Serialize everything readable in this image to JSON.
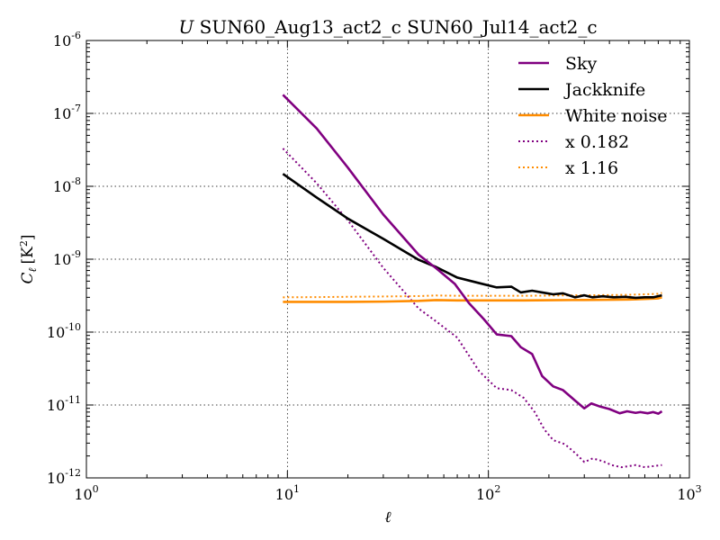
{
  "chart_data": {
    "type": "line",
    "title_italic": "U",
    "title_rest": "SUN60_Aug13_act2_c SUN60_Jul14_act2_c",
    "xlabel": "ℓ",
    "ylabel_main": "C",
    "ylabel_sub": "ℓ",
    "ylabel_unit": "[K",
    "ylabel_unit_exp": "2",
    "ylabel_unit_close": "]",
    "xscale": "log",
    "yscale": "log",
    "xlim": [
      1,
      1000
    ],
    "ylim": [
      1e-12,
      1e-06
    ],
    "grid": true,
    "legend_position": "top-right",
    "x_ticks": [
      {
        "base": "10",
        "exp": "0",
        "value": 1
      },
      {
        "base": "10",
        "exp": "1",
        "value": 10
      },
      {
        "base": "10",
        "exp": "2",
        "value": 100
      },
      {
        "base": "10",
        "exp": "3",
        "value": 1000
      }
    ],
    "y_ticks": [
      {
        "base": "10",
        "exp": "-12",
        "value": 1e-12
      },
      {
        "base": "10",
        "exp": "-11",
        "value": 1e-11
      },
      {
        "base": "10",
        "exp": "-10",
        "value": 1e-10
      },
      {
        "base": "10",
        "exp": "-9",
        "value": 1e-09
      },
      {
        "base": "10",
        "exp": "-8",
        "value": 1e-08
      },
      {
        "base": "10",
        "exp": "-7",
        "value": 1e-07
      },
      {
        "base": "10",
        "exp": "-6",
        "value": 1e-06
      }
    ],
    "series": [
      {
        "name": "Sky",
        "color": "#800080",
        "style": "solid",
        "x": [
          9.5,
          14,
          20,
          30,
          45,
          55,
          68,
          80,
          95,
          110,
          130,
          145,
          165,
          185,
          210,
          235,
          270,
          300,
          325,
          360,
          400,
          450,
          490,
          540,
          570,
          620,
          660,
          700,
          730
        ],
        "y": [
          1.8e-07,
          6.2e-08,
          1.8e-08,
          4.1e-09,
          1.15e-09,
          7.5e-10,
          4.6e-10,
          2.5e-10,
          1.5e-10,
          9.3e-11,
          8.8e-11,
          6.2e-11,
          5e-11,
          2.5e-11,
          1.8e-11,
          1.6e-11,
          1.15e-11,
          9e-12,
          1.05e-11,
          9.5e-12,
          8.8e-12,
          7.7e-12,
          8.2e-12,
          7.8e-12,
          8e-12,
          7.7e-12,
          8e-12,
          7.6e-12,
          8.2e-12
        ]
      },
      {
        "name": "Jackknife",
        "color": "#000000",
        "style": "solid",
        "x": [
          9.5,
          14,
          20,
          30,
          45,
          55,
          70,
          90,
          110,
          130,
          145,
          165,
          185,
          210,
          235,
          270,
          300,
          330,
          370,
          420,
          480,
          540,
          600,
          660,
          730
        ],
        "y": [
          1.48e-08,
          7e-09,
          3.6e-09,
          1.9e-09,
          9.8e-10,
          7.8e-10,
          5.6e-10,
          4.7e-10,
          4.1e-10,
          4.2e-10,
          3.5e-10,
          3.7e-10,
          3.5e-10,
          3.3e-10,
          3.4e-10,
          3e-10,
          3.2e-10,
          3e-10,
          3.1e-10,
          3e-10,
          3.05e-10,
          2.95e-10,
          3e-10,
          3e-10,
          3.2e-10
        ]
      },
      {
        "name": "White noise",
        "color": "#ff8c00",
        "style": "solid",
        "x": [
          9.5,
          14,
          20,
          30,
          45,
          55,
          70,
          90,
          110,
          150,
          200,
          300,
          400,
          500,
          600,
          700,
          730
        ],
        "y": [
          2.6e-10,
          2.6e-10,
          2.6e-10,
          2.62e-10,
          2.68e-10,
          2.75e-10,
          2.72e-10,
          2.72e-10,
          2.72e-10,
          2.72e-10,
          2.74e-10,
          2.76e-10,
          2.78e-10,
          2.8e-10,
          2.85e-10,
          2.9e-10,
          3e-10
        ]
      },
      {
        "name": "x 0.182",
        "color": "#800080",
        "style": "dotted",
        "x": [
          9.5,
          14,
          20,
          30,
          45,
          55,
          70,
          90,
          110,
          130,
          150,
          170,
          190,
          210,
          240,
          270,
          300,
          330,
          370,
          410,
          460,
          500,
          540,
          600,
          660,
          730
        ],
        "y": [
          3.3e-08,
          1.1e-08,
          3.4e-09,
          7.6e-10,
          2.1e-10,
          1.4e-10,
          8.4e-11,
          2.9e-11,
          1.7e-11,
          1.6e-11,
          1.25e-11,
          8e-12,
          4.6e-12,
          3.3e-12,
          2.9e-12,
          2.2e-12,
          1.65e-12,
          1.85e-12,
          1.7e-12,
          1.5e-12,
          1.4e-12,
          1.45e-12,
          1.5e-12,
          1.4e-12,
          1.45e-12,
          1.5e-12
        ]
      },
      {
        "name": "x 1.16",
        "color": "#ff8c00",
        "style": "dotted",
        "x": [
          9.5,
          14,
          20,
          30,
          45,
          55,
          70,
          90,
          110,
          150,
          200,
          300,
          400,
          500,
          600,
          700,
          730
        ],
        "y": [
          3e-10,
          3.02e-10,
          3.05e-10,
          3.08e-10,
          3.12e-10,
          3.18e-10,
          3.15e-10,
          3.15e-10,
          3.15e-10,
          3.15e-10,
          3.17e-10,
          3.2e-10,
          3.22e-10,
          3.25e-10,
          3.3e-10,
          3.35e-10,
          3.45e-10
        ]
      }
    ]
  }
}
